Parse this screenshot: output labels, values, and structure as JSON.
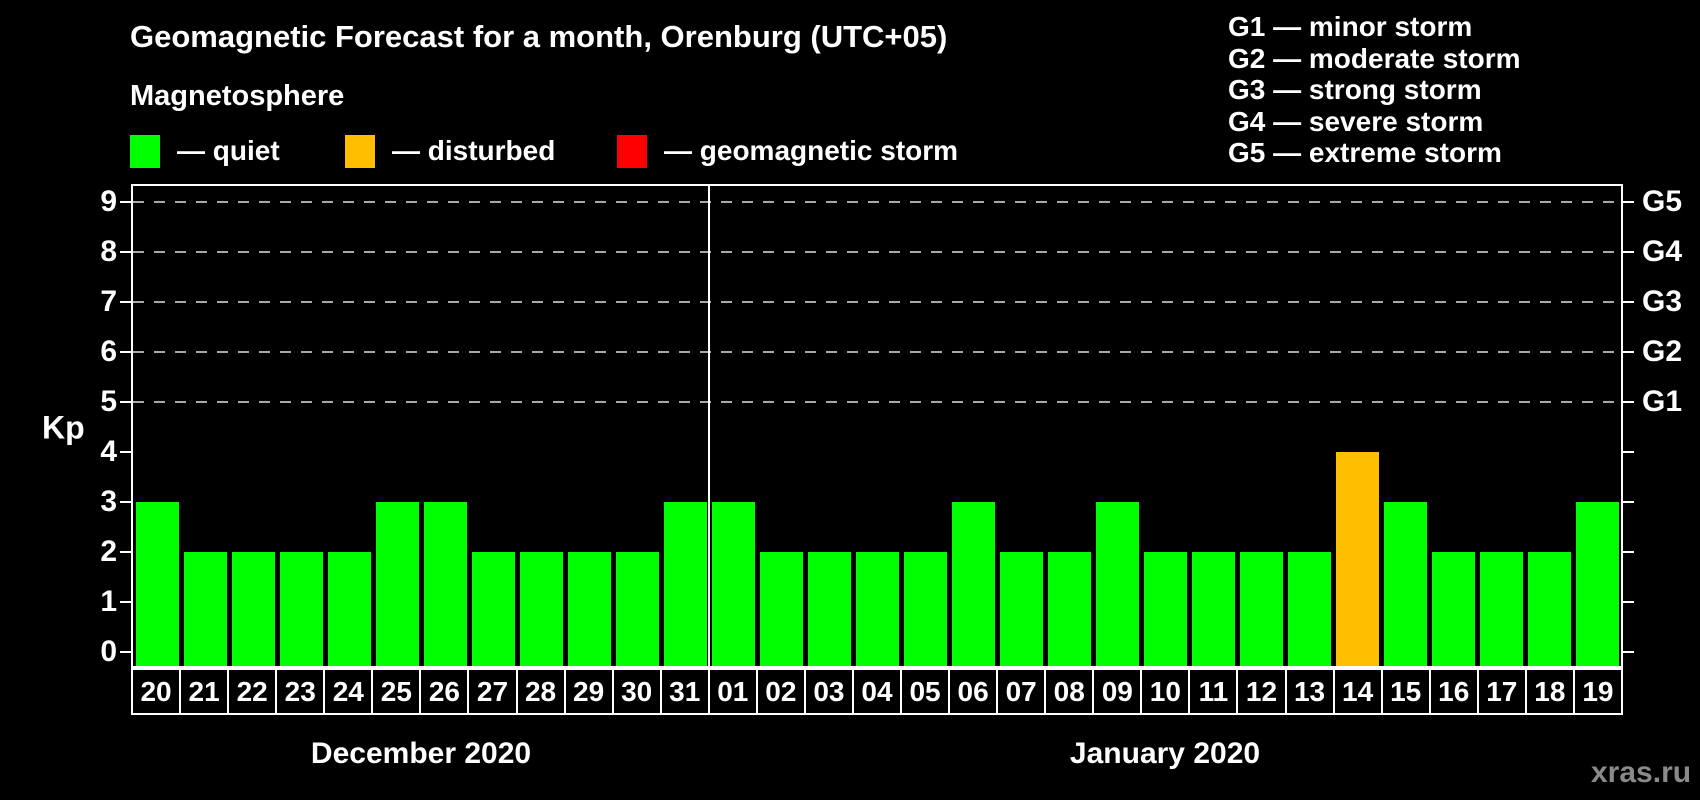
{
  "title": "Geomagnetic Forecast for a month, Orenburg (UTC+05)",
  "legend": {
    "heading": "Magnetosphere",
    "dash": "—",
    "items": [
      {
        "key": "quiet",
        "label": "quiet",
        "color": "#00ff00"
      },
      {
        "key": "disturbed",
        "label": "disturbed",
        "color": "#ffbe00"
      },
      {
        "key": "storm",
        "label": "geomagnetic storm",
        "color": "#ff0000"
      }
    ]
  },
  "g_legend": [
    {
      "code": "G1",
      "description": "minor storm"
    },
    {
      "code": "G2",
      "description": "moderate storm"
    },
    {
      "code": "G3",
      "description": "strong storm"
    },
    {
      "code": "G4",
      "description": "severe storm"
    },
    {
      "code": "G5",
      "description": "extreme storm"
    }
  ],
  "watermark": "xras.ru",
  "chart_data": {
    "type": "bar",
    "ylabel": "Kp",
    "ylim": [
      0,
      9
    ],
    "yticks": [
      0,
      1,
      2,
      3,
      4,
      5,
      6,
      7,
      8,
      9
    ],
    "gridlines": [
      5,
      6,
      7,
      8,
      9
    ],
    "right_axis_labels": {
      "5": "G1",
      "6": "G2",
      "7": "G3",
      "8": "G4",
      "9": "G5"
    },
    "months": [
      {
        "label": "December 2020",
        "days": 12
      },
      {
        "label": "January 2020",
        "days": 19
      }
    ],
    "categories": [
      "20",
      "21",
      "22",
      "23",
      "24",
      "25",
      "26",
      "27",
      "28",
      "29",
      "30",
      "31",
      "01",
      "02",
      "03",
      "04",
      "05",
      "06",
      "07",
      "08",
      "09",
      "10",
      "11",
      "12",
      "13",
      "14",
      "15",
      "16",
      "17",
      "18",
      "19"
    ],
    "values": [
      3,
      2,
      2,
      2,
      2,
      3,
      3,
      2,
      2,
      2,
      2,
      3,
      3,
      2,
      2,
      2,
      2,
      3,
      2,
      2,
      3,
      2,
      2,
      2,
      2,
      4,
      3,
      2,
      2,
      2,
      3
    ],
    "statuses": [
      "quiet",
      "quiet",
      "quiet",
      "quiet",
      "quiet",
      "quiet",
      "quiet",
      "quiet",
      "quiet",
      "quiet",
      "quiet",
      "quiet",
      "quiet",
      "quiet",
      "quiet",
      "quiet",
      "quiet",
      "quiet",
      "quiet",
      "quiet",
      "quiet",
      "quiet",
      "quiet",
      "quiet",
      "quiet",
      "disturbed",
      "quiet",
      "quiet",
      "quiet",
      "quiet",
      "quiet"
    ],
    "status_colors": {
      "quiet": "#00ff00",
      "disturbed": "#ffbe00",
      "storm": "#ff0000"
    }
  }
}
